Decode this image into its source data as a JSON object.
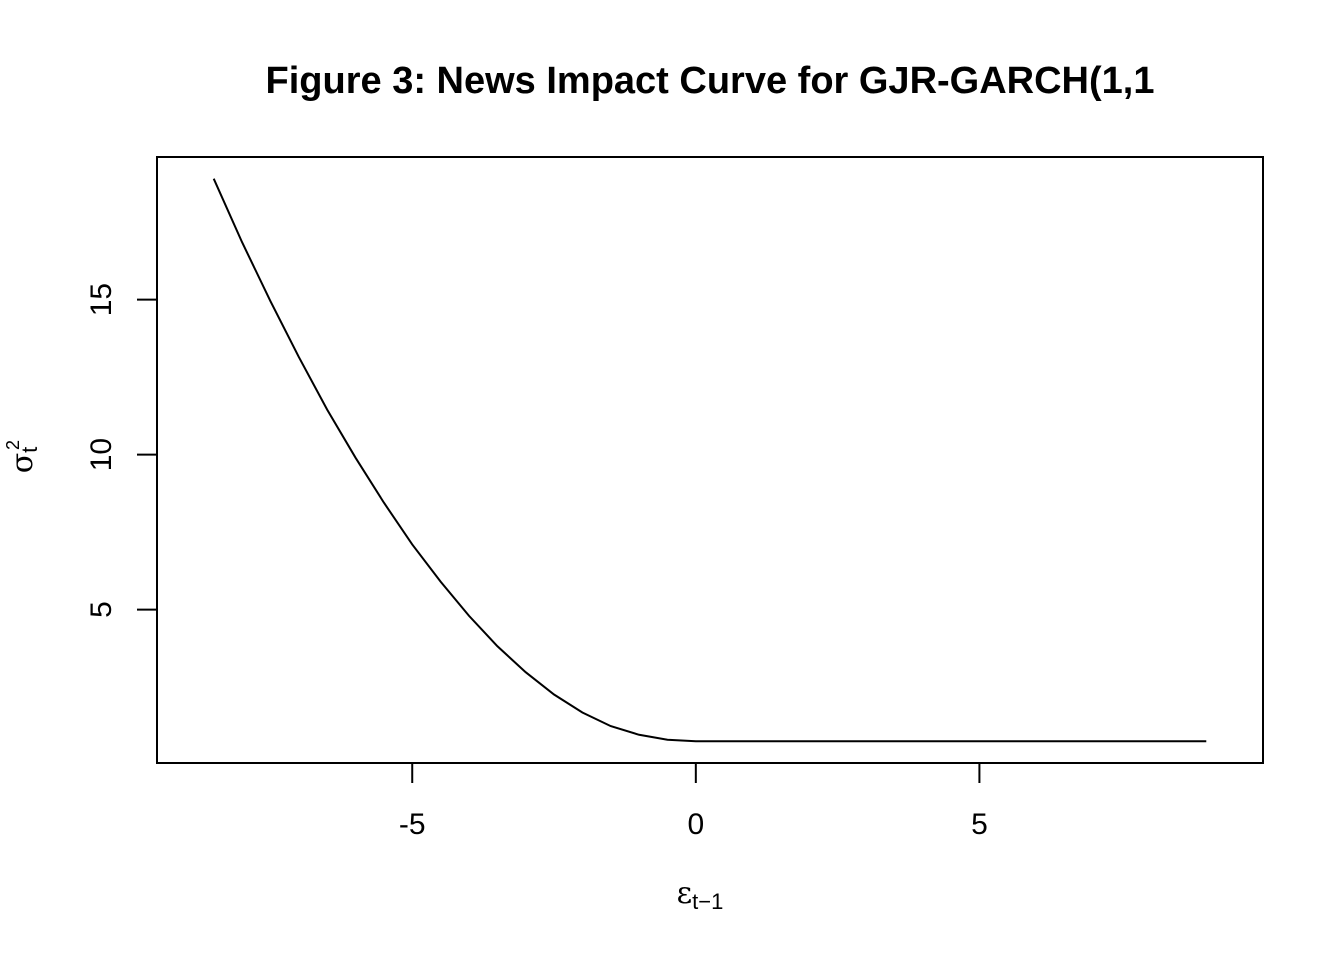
{
  "chart_data": {
    "type": "line",
    "title": "Figure 3: News Impact Curve for GJR-GARCH(1,1",
    "xlabel": {
      "symbol": "ε",
      "subscript": "t−1"
    },
    "ylabel": {
      "symbol": "σ",
      "superscript": "2",
      "subscript": "t"
    },
    "xlim": [
      -9.5,
      10
    ],
    "ylim": [
      0.05,
      19.6
    ],
    "x_ticks": [
      -5,
      0,
      5
    ],
    "y_ticks": [
      5,
      10,
      15
    ],
    "x_tick_labels": [
      "-5",
      "0",
      "5"
    ],
    "y_tick_labels": [
      "5",
      "10",
      "15"
    ],
    "grid": false,
    "series": [
      {
        "color": "#000000",
        "x": [
          -8.5,
          -8,
          -7.5,
          -7,
          -6.5,
          -6,
          -5.5,
          -5,
          -4.5,
          -4,
          -3.5,
          -3,
          -2.5,
          -2,
          -1.5,
          -1,
          -0.5,
          0,
          1,
          2,
          3,
          4,
          5,
          6,
          7,
          8,
          9
        ],
        "y": [
          18.9,
          16.85,
          14.95,
          13.15,
          11.45,
          9.9,
          8.45,
          7.1,
          5.9,
          4.8,
          3.82,
          2.98,
          2.26,
          1.68,
          1.24,
          0.96,
          0.8,
          0.75,
          0.75,
          0.75,
          0.75,
          0.75,
          0.75,
          0.75,
          0.75,
          0.75,
          0.75
        ]
      }
    ]
  }
}
